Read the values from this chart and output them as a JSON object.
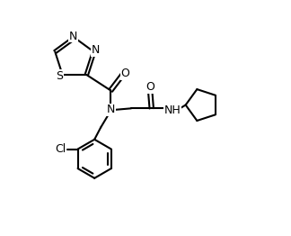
{
  "bg_color": "#ffffff",
  "line_color": "#000000",
  "line_width": 1.5,
  "font_size": 9,
  "figsize": [
    3.24,
    2.62
  ],
  "dpi": 100,
  "xlim": [
    0,
    10
  ],
  "ylim": [
    0,
    8.2
  ]
}
